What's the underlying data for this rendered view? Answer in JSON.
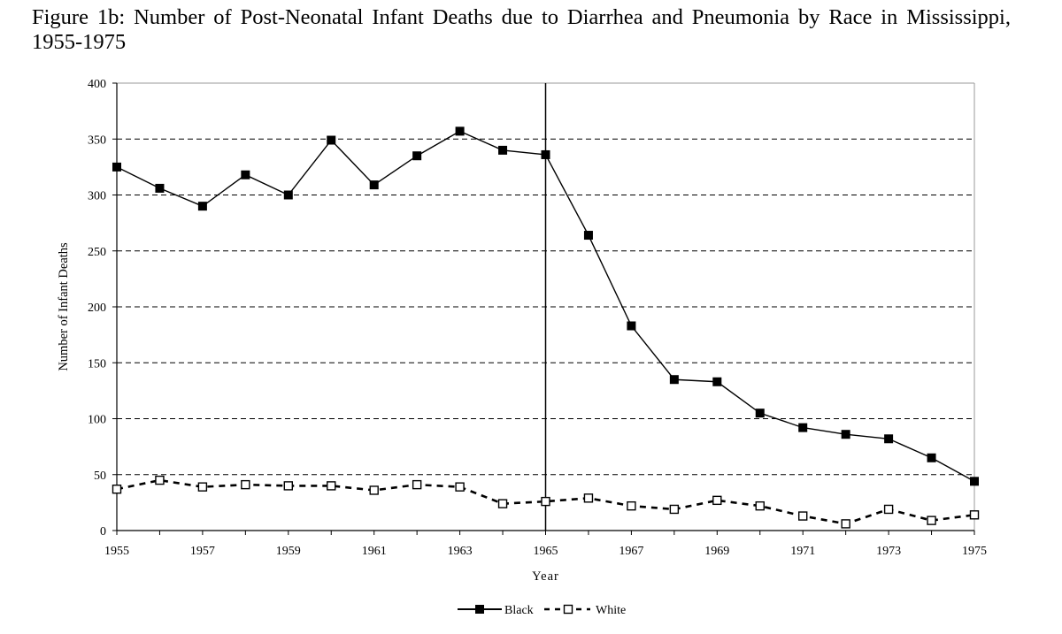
{
  "chart_data": {
    "type": "line",
    "title": "Figure 1b: Number of Post-Neonatal Infant Deaths due to Diarrhea and Pneumonia by Race in Mississippi, 1955-1975",
    "xlabel": "Year",
    "ylabel": "Number of Infant Deaths",
    "x": [
      1955,
      1956,
      1957,
      1958,
      1959,
      1960,
      1961,
      1962,
      1963,
      1964,
      1965,
      1966,
      1967,
      1968,
      1969,
      1970,
      1971,
      1972,
      1973,
      1974,
      1975
    ],
    "xticks": [
      "1955",
      "1957",
      "1959",
      "1961",
      "1963",
      "1965",
      "1967",
      "1969",
      "1971",
      "1973",
      "1975"
    ],
    "ylim": [
      0,
      400
    ],
    "yticks": [
      "0",
      "50",
      "100",
      "150",
      "200",
      "250",
      "300",
      "350",
      "400"
    ],
    "grid": "horizontal dashed",
    "reference_line_x": 1965,
    "legend_position": "bottom-center",
    "series": [
      {
        "name": "Black",
        "marker": "filled-square",
        "line": "solid",
        "color": "#000000",
        "values": [
          325,
          306,
          290,
          318,
          300,
          349,
          309,
          335,
          357,
          340,
          336,
          264,
          183,
          135,
          133,
          105,
          92,
          86,
          82,
          65,
          44
        ]
      },
      {
        "name": "White",
        "marker": "hollow-square",
        "line": "dashed",
        "color": "#000000",
        "values": [
          37,
          45,
          39,
          41,
          40,
          40,
          36,
          41,
          39,
          24,
          26,
          29,
          22,
          19,
          27,
          22,
          13,
          6,
          19,
          9,
          14
        ]
      }
    ]
  }
}
